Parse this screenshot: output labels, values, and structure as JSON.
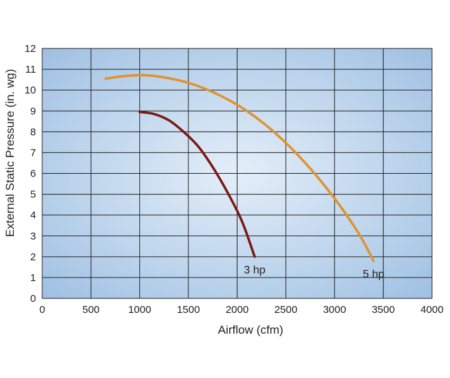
{
  "chart_data": {
    "type": "line",
    "title": "",
    "xlabel": "Airflow (cfm)",
    "ylabel": "External Static Pressure (in. wg)",
    "xlim": [
      0,
      4000
    ],
    "ylim": [
      0,
      12
    ],
    "x_ticks": [
      "0",
      "500",
      "1000",
      "1500",
      "2000",
      "2500",
      "3000",
      "3500",
      "4000"
    ],
    "y_ticks": [
      "0",
      "1",
      "2",
      "3",
      "4",
      "5",
      "6",
      "7",
      "8",
      "9",
      "10",
      "11",
      "12"
    ],
    "grid": true,
    "legend": "none",
    "series": [
      {
        "name": "3 hp",
        "color": "#7a1a12",
        "x": [
          1000,
          1150,
          1300,
          1450,
          1600,
          1750,
          1900,
          2050,
          2180
        ],
        "y": [
          8.95,
          8.85,
          8.55,
          8.0,
          7.3,
          6.3,
          5.1,
          3.7,
          2.0
        ]
      },
      {
        "name": "5 hp",
        "color": "#e0922e",
        "x": [
          650,
          800,
          1000,
          1200,
          1500,
          1800,
          2100,
          2400,
          2700,
          3000,
          3250,
          3400
        ],
        "y": [
          10.55,
          10.65,
          10.72,
          10.65,
          10.35,
          9.8,
          9.0,
          7.9,
          6.5,
          4.8,
          3.1,
          1.8
        ]
      }
    ]
  }
}
